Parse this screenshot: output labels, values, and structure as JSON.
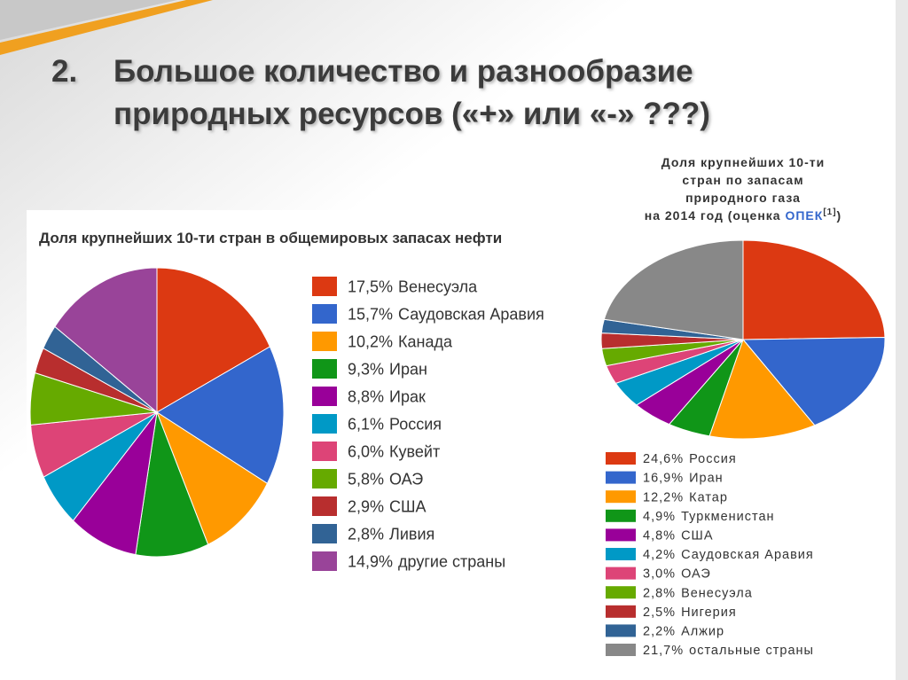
{
  "slide": {
    "number": "2.",
    "title_lines": [
      "Большое количество и разнообразие",
      "природных ресурсов («+» или «-» ???)"
    ]
  },
  "chart_data": [
    {
      "type": "pie",
      "title": "Доля крупнейших 10-ти стран в общемировых запасах нефти",
      "categories": [
        "Венесуэла",
        "Саудовская Аравия",
        "Канада",
        "Иран",
        "Ирак",
        "Россия",
        "Кувейт",
        "ОАЭ",
        "США",
        "Ливия",
        "другие страны"
      ],
      "values": [
        17.5,
        15.7,
        10.2,
        9.3,
        8.8,
        6.1,
        6.0,
        5.8,
        2.9,
        2.8,
        14.9
      ],
      "value_labels": [
        "17,5%",
        "15,7%",
        "10,2%",
        "9,3%",
        "8,8%",
        "6,1%",
        "6,0%",
        "5,8%",
        "2,9%",
        "2,8%",
        "14,9%"
      ],
      "colors": [
        "#dc3912",
        "#3366cc",
        "#ff9900",
        "#109618",
        "#990099",
        "#0099c6",
        "#dd4477",
        "#66aa00",
        "#b82e2e",
        "#316395",
        "#994499"
      ]
    },
    {
      "type": "pie",
      "title_lines": [
        "Доля крупнейших 10-ти",
        "стран по запасам",
        "природного газа",
        "на 2014 год (оценка"
      ],
      "source": "ОПЕК",
      "footnote": "[1]",
      "title_end": ")",
      "categories": [
        "Россия",
        "Иран",
        "Катар",
        "Туркменистан",
        "США",
        "Саудовская Аравия",
        "ОАЭ",
        "Венесуэла",
        "Нигерия",
        "Алжир",
        "остальные страны"
      ],
      "values": [
        24.6,
        16.9,
        12.2,
        4.9,
        4.8,
        4.2,
        3.0,
        2.8,
        2.5,
        2.2,
        21.7
      ],
      "value_labels": [
        "24,6%",
        "16,9%",
        "12,2%",
        "4,9%",
        "4,8%",
        "4,2%",
        "3,0%",
        "2,8%",
        "2,5%",
        "2,2%",
        "21,7%"
      ],
      "colors": [
        "#dc3912",
        "#3366cc",
        "#ff9900",
        "#109618",
        "#990099",
        "#0099c6",
        "#dd4477",
        "#66aa00",
        "#b82e2e",
        "#316395",
        "#888888"
      ]
    }
  ]
}
